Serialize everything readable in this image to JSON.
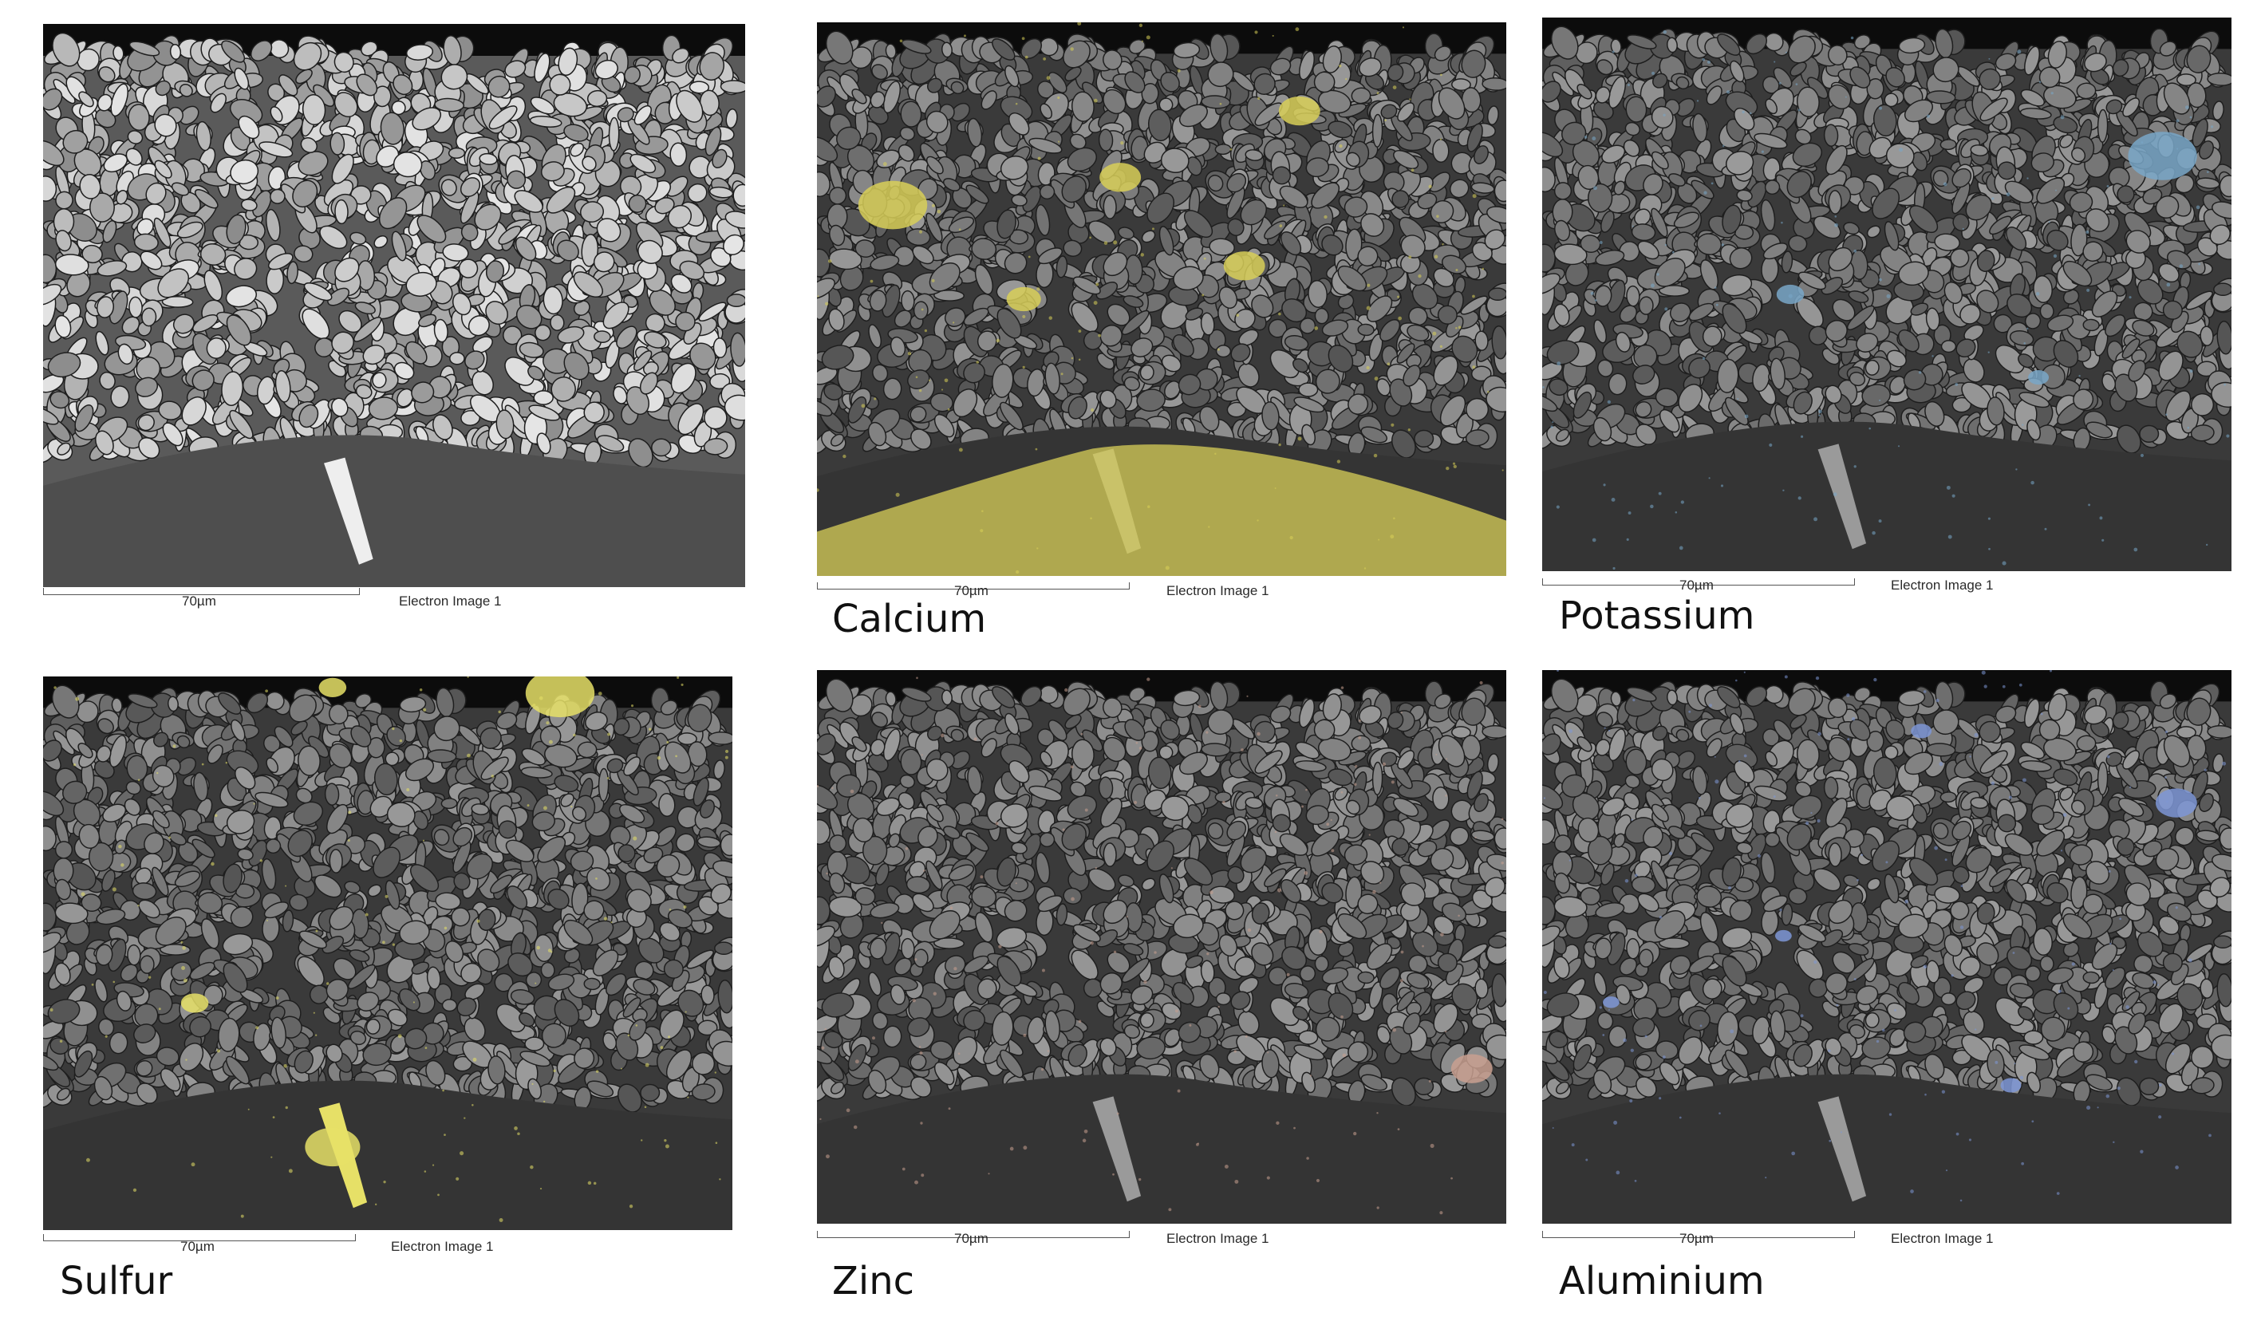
{
  "panels": [
    {
      "id": "electron",
      "caption": "",
      "scale_label": "70µm",
      "image_label": "Electron Image 1",
      "overlay_color": "",
      "mode": "grayscale"
    },
    {
      "id": "calcium",
      "caption": "Calcium",
      "scale_label": "70µm",
      "image_label": "Electron Image 1",
      "overlay_color": "#d8cf58",
      "mode": "map"
    },
    {
      "id": "potassium",
      "caption": "Potassium",
      "scale_label": "70µm",
      "image_label": "Electron Image 1",
      "overlay_color": "#79a7c8",
      "mode": "map"
    },
    {
      "id": "sulfur",
      "caption": "Sulfur",
      "scale_label": "70µm",
      "image_label": "Electron Image 1",
      "overlay_color": "#e6e067",
      "mode": "map"
    },
    {
      "id": "zinc",
      "caption": "Zinc",
      "scale_label": "70µm",
      "image_label": "Electron Image 1",
      "overlay_color": "#c9a090",
      "mode": "map"
    },
    {
      "id": "aluminium",
      "caption": "Aluminium",
      "scale_label": "70µm",
      "image_label": "Electron Image 1",
      "overlay_color": "#7e97d6",
      "mode": "map"
    }
  ]
}
